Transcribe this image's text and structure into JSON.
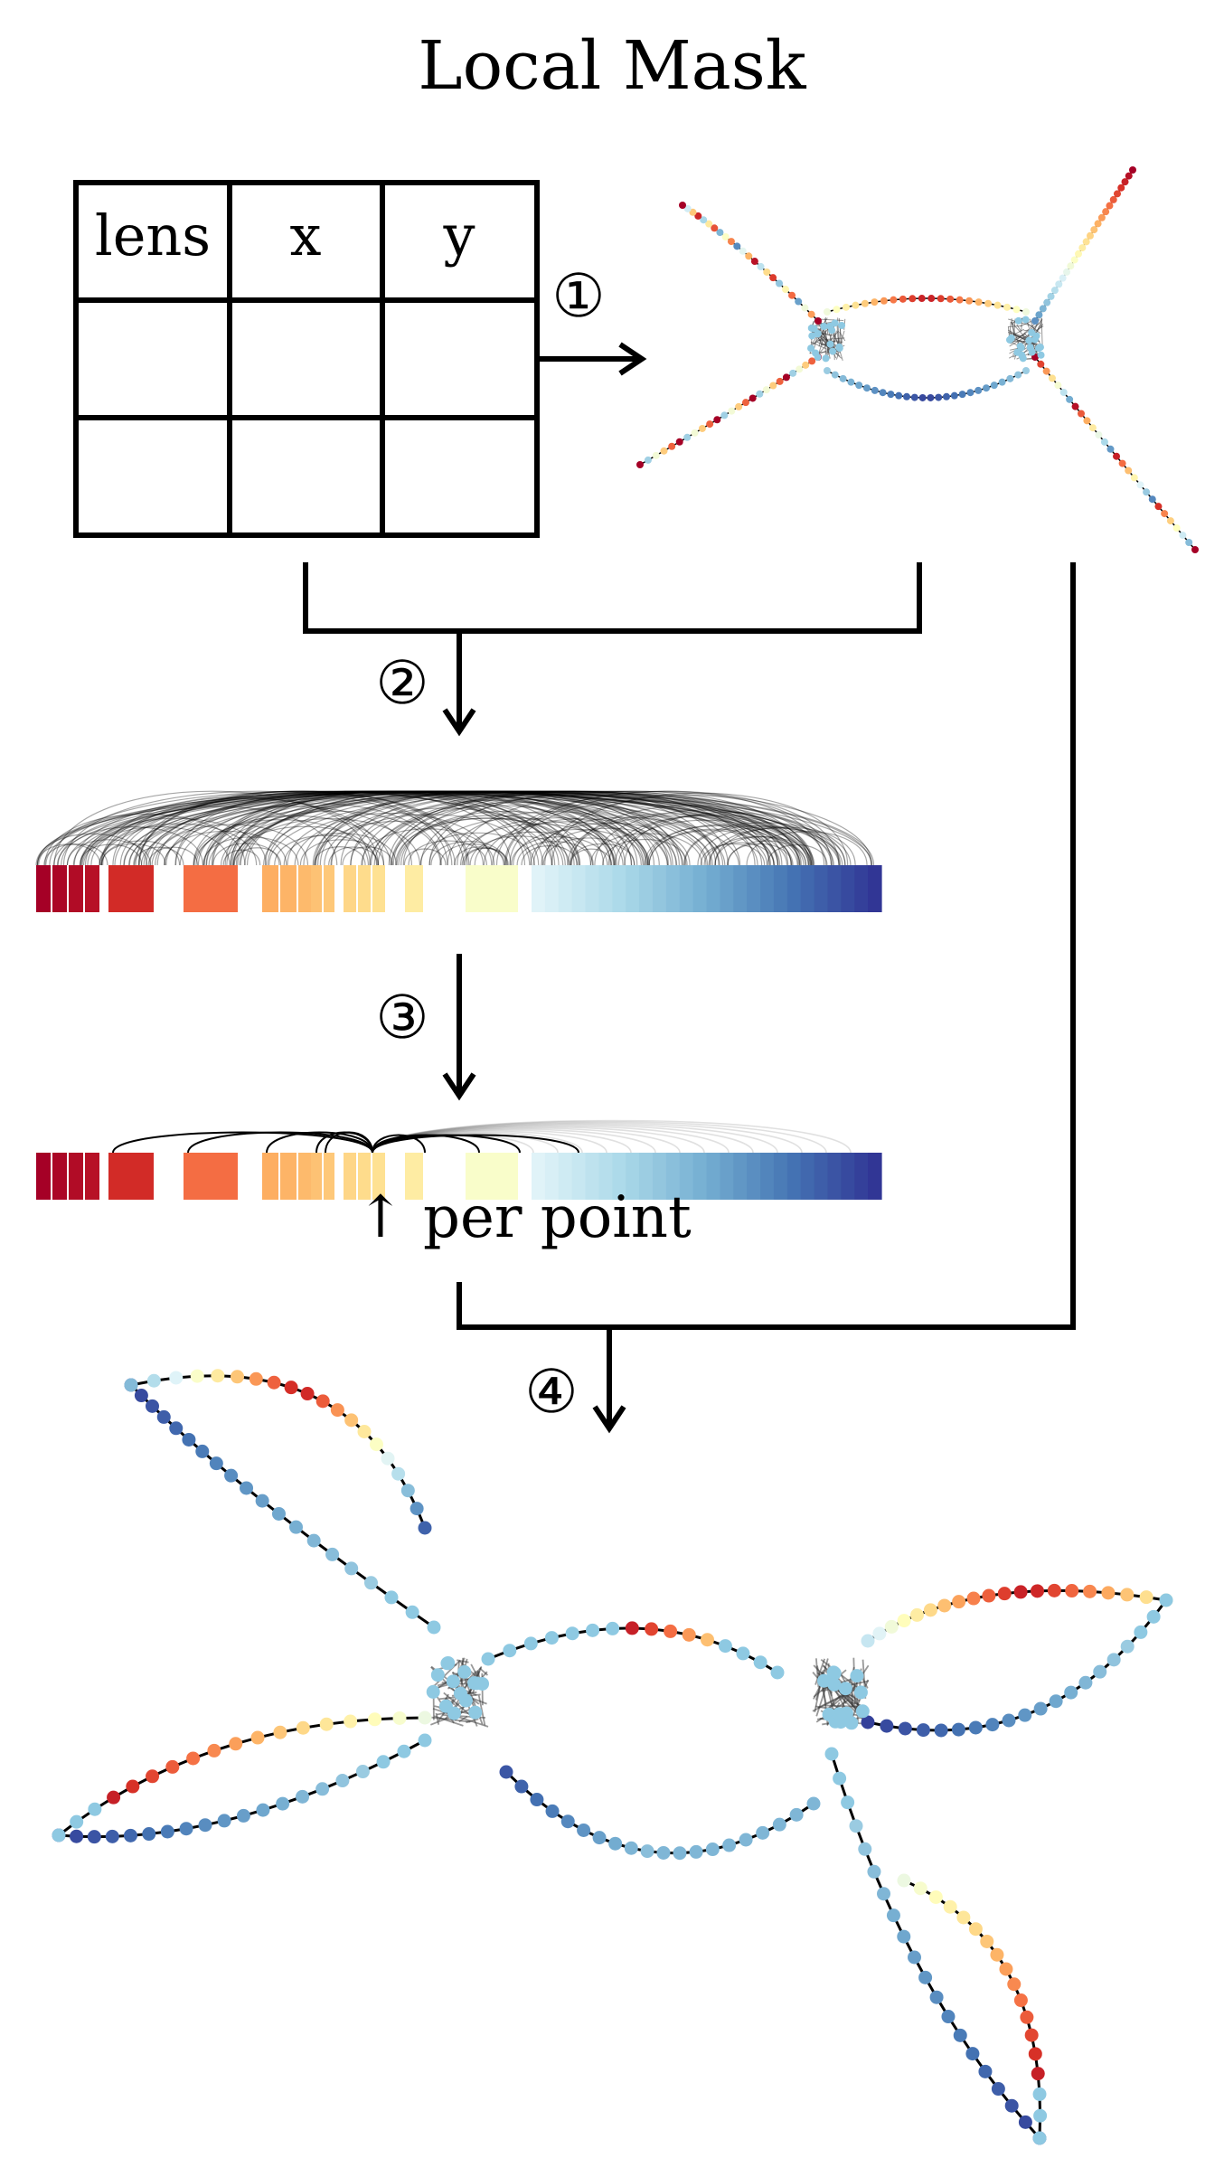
{
  "title": "Local Mask",
  "table": {
    "headers": [
      "lens",
      "x",
      "y"
    ],
    "rows": [
      [
        "",
        "",
        ""
      ],
      [
        "",
        "",
        ""
      ]
    ]
  },
  "steps": [
    "①",
    "②",
    "③",
    "④"
  ],
  "per_point_label": "↑ per point",
  "colors": {
    "stroke": "#000000",
    "palette": [
      "#a50026",
      "#d73027",
      "#f46d43",
      "#fdae61",
      "#fee090",
      "#ffffbf",
      "#e0f3f8",
      "#abd9e9",
      "#74add1",
      "#4575b4",
      "#313695"
    ],
    "node_light": "#8ec9e2"
  }
}
